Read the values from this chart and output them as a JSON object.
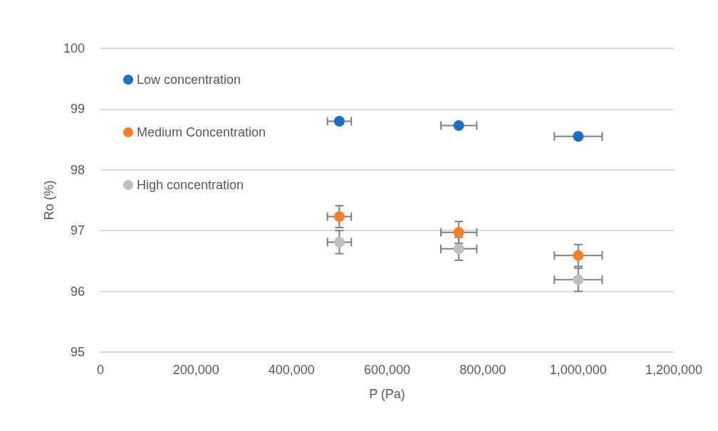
{
  "chart_data": {
    "type": "scatter",
    "xlabel": "P (Pa)",
    "ylabel": "Ro (%)",
    "x": [
      500000,
      750000,
      1000000
    ],
    "series": [
      {
        "name": "Low concentration",
        "color": "#1a6fc6",
        "values": [
          98.8,
          98.73,
          98.55
        ],
        "xerrors": [
          25000,
          37500,
          50000
        ]
      },
      {
        "name": "Medium Concentration",
        "color": "#fd7f23",
        "values": [
          97.23,
          96.97,
          96.59
        ],
        "errors": [
          0.18,
          0.18,
          0.18
        ],
        "xerrors": [
          25000,
          37500,
          50000
        ]
      },
      {
        "name": "High concentration",
        "color": "#bfbfbf",
        "values": [
          96.81,
          96.7,
          96.19
        ],
        "errors": [
          0.19,
          0.19,
          0.19
        ],
        "xerrors": [
          25000,
          37500,
          50000
        ]
      }
    ],
    "xlim": [
      0,
      1200000
    ],
    "xticks": [
      0,
      {
        "value": 200000,
        "label": "200,000"
      },
      {
        "value": 400000,
        "label": "400,000"
      },
      {
        "value": 600000,
        "label": "600,000"
      },
      {
        "value": 800000,
        "label": "800,000"
      },
      {
        "value": 1000000,
        "label": "1,000,000"
      },
      {
        "value": 1200000,
        "label": "1,200,000"
      }
    ],
    "ylim": [
      95,
      100
    ],
    "yticks": [
      95,
      96,
      97,
      98,
      99,
      100
    ],
    "grid": "y",
    "legend": "top left",
    "marker": "circle"
  }
}
